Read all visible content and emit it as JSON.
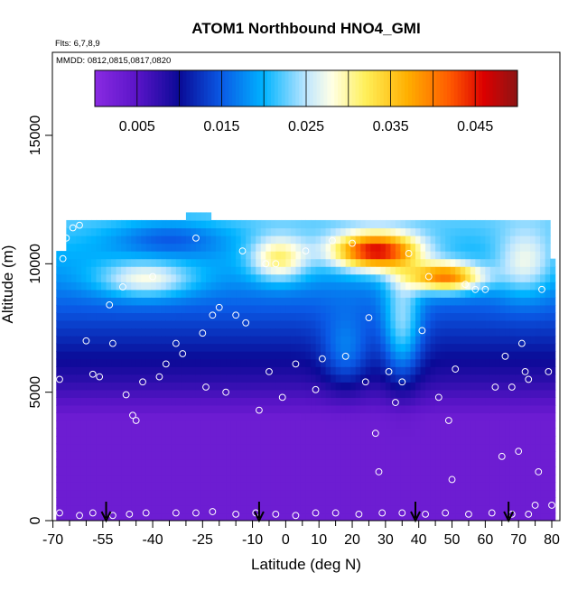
{
  "chart_data": {
    "type": "heatmap",
    "title": "ATOM1 Northbound HNO4_GMI",
    "flights_note": "Flts: 6,7,8,9",
    "dates_note": "MMDD: 0812,0815,0817,0820",
    "xlabel": "Latitude (deg N)",
    "ylabel": "Altitude (m)",
    "xlim": [
      -70,
      82
    ],
    "ylim": [
      0,
      17200
    ],
    "x_ticks": [
      -70,
      -55,
      -40,
      -25,
      -10,
      0,
      10,
      20,
      30,
      40,
      50,
      60,
      70,
      80
    ],
    "x_tick_labels": [
      "-70",
      "-55",
      "-40",
      "-25",
      "-10",
      "0",
      "10",
      "20",
      "30",
      "40",
      "50",
      "60",
      "70",
      "80"
    ],
    "x_minor_ticks": [
      -65,
      -60,
      -50,
      -45,
      -35,
      -30,
      -20,
      -15,
      -5,
      5,
      15,
      25,
      35,
      45,
      55,
      65,
      75
    ],
    "y_ticks": [
      0,
      5000,
      10000,
      15000
    ],
    "y_tick_labels": [
      "0",
      "5000",
      "10000",
      "15000"
    ],
    "colorbar": {
      "range": [
        0,
        0.05
      ],
      "ticks": [
        0.005,
        0.015,
        0.025,
        0.035,
        0.045
      ],
      "tick_labels": [
        "0.005",
        "0.015",
        "0.025",
        "0.035",
        "0.045"
      ]
    },
    "field_features": {
      "lat_extent": [
        -69,
        80
      ],
      "top_altitude_m": 11500,
      "high_peak": {
        "lat": 25,
        "alt_m": 10500,
        "value": 0.045
      },
      "surface_value": 0.003
    },
    "flight_path_points": [
      [
        -68,
        5500
      ],
      [
        -67,
        10200
      ],
      [
        -66,
        11000
      ],
      [
        -64,
        11400
      ],
      [
        -62,
        11500
      ],
      [
        -60,
        7000
      ],
      [
        -58,
        5700
      ],
      [
        -56,
        5600
      ],
      [
        -53,
        8400
      ],
      [
        -52,
        6900
      ],
      [
        -49,
        9100
      ],
      [
        -48,
        4900
      ],
      [
        -46,
        4100
      ],
      [
        -45,
        3900
      ],
      [
        -43,
        5400
      ],
      [
        -40,
        9500
      ],
      [
        -38,
        5600
      ],
      [
        -36,
        6100
      ],
      [
        -33,
        6900
      ],
      [
        -31,
        6500
      ],
      [
        -27,
        11000
      ],
      [
        -25,
        7300
      ],
      [
        -24,
        5200
      ],
      [
        -22,
        8000
      ],
      [
        -20,
        8300
      ],
      [
        -18,
        5000
      ],
      [
        -15,
        8000
      ],
      [
        -13,
        10500
      ],
      [
        -12,
        7700
      ],
      [
        -8,
        4300
      ],
      [
        -6,
        10000
      ],
      [
        -5,
        5800
      ],
      [
        -3,
        10000
      ],
      [
        -1,
        4800
      ],
      [
        3,
        6100
      ],
      [
        6,
        10500
      ],
      [
        9,
        5100
      ],
      [
        11,
        6300
      ],
      [
        14,
        10900
      ],
      [
        18,
        6400
      ],
      [
        20,
        10800
      ],
      [
        24,
        5400
      ],
      [
        25,
        7900
      ],
      [
        27,
        3400
      ],
      [
        28,
        1900
      ],
      [
        31,
        5800
      ],
      [
        33,
        4600
      ],
      [
        35,
        5400
      ],
      [
        37,
        10400
      ],
      [
        41,
        7400
      ],
      [
        43,
        9500
      ],
      [
        46,
        4800
      ],
      [
        49,
        3900
      ],
      [
        50,
        1600
      ],
      [
        51,
        5900
      ],
      [
        54,
        9200
      ],
      [
        57,
        9000
      ],
      [
        60,
        9000
      ],
      [
        63,
        5200
      ],
      [
        65,
        2500
      ],
      [
        66,
        6400
      ],
      [
        68,
        5200
      ],
      [
        70,
        2700
      ],
      [
        71,
        6900
      ],
      [
        72,
        5800
      ],
      [
        73,
        5500
      ],
      [
        75,
        600
      ],
      [
        76,
        1900
      ],
      [
        77,
        9000
      ],
      [
        79,
        5800
      ],
      [
        80,
        600
      ]
    ],
    "surface_points": [
      [
        -68,
        300
      ],
      [
        -62,
        200
      ],
      [
        -58,
        300
      ],
      [
        -52,
        200
      ],
      [
        -47,
        250
      ],
      [
        -42,
        300
      ],
      [
        -33,
        300
      ],
      [
        -27,
        300
      ],
      [
        -22,
        350
      ],
      [
        -15,
        250
      ],
      [
        -9,
        300
      ],
      [
        -3,
        250
      ],
      [
        3,
        200
      ],
      [
        9,
        300
      ],
      [
        15,
        300
      ],
      [
        22,
        250
      ],
      [
        29,
        300
      ],
      [
        35,
        300
      ],
      [
        42,
        250
      ],
      [
        48,
        300
      ],
      [
        55,
        250
      ],
      [
        62,
        300
      ],
      [
        68,
        250
      ],
      [
        73,
        250
      ]
    ],
    "arrow_marks_lat": [
      -54,
      -8,
      39,
      67
    ]
  }
}
